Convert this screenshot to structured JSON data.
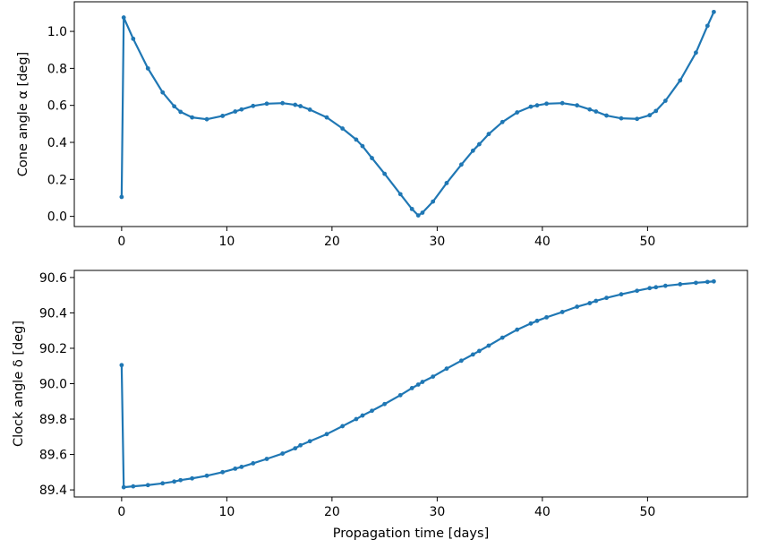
{
  "chart_data": [
    {
      "type": "line",
      "xlabel": "",
      "ylabel": "Cone angle α [deg]",
      "xlim": [
        -4.5,
        59.5
      ],
      "ylim": [
        -0.055,
        1.16
      ],
      "xticks": [
        0,
        10,
        20,
        30,
        40,
        50
      ],
      "yticks": [
        0.0,
        0.2,
        0.4,
        0.6,
        0.8,
        1.0
      ],
      "ytick_labels": [
        "0.0",
        "0.2",
        "0.4",
        "0.6",
        "0.8",
        "1.0"
      ],
      "grid": false,
      "series": [
        {
          "color": "#1f77b4",
          "marker": "dot",
          "x": [
            0.0,
            0.2,
            1.1,
            2.5,
            3.9,
            5.0,
            5.6,
            6.7,
            8.1,
            9.6,
            10.8,
            11.4,
            12.5,
            13.8,
            15.3,
            16.5,
            17.0,
            17.9,
            19.5,
            21.0,
            22.3,
            22.9,
            23.8,
            25.0,
            26.5,
            27.6,
            28.2,
            28.6,
            29.6,
            30.9,
            32.3,
            33.4,
            34.0,
            34.9,
            36.2,
            37.6,
            38.9,
            39.5,
            40.4,
            41.9,
            43.3,
            44.5,
            45.1,
            46.1,
            47.5,
            49.0,
            50.2,
            50.8,
            51.7,
            53.1,
            54.6,
            55.7,
            56.3
          ],
          "y": [
            0.105,
            1.075,
            0.96,
            0.8,
            0.67,
            0.595,
            0.565,
            0.535,
            0.525,
            0.543,
            0.567,
            0.578,
            0.597,
            0.609,
            0.612,
            0.603,
            0.596,
            0.577,
            0.535,
            0.475,
            0.415,
            0.38,
            0.315,
            0.23,
            0.12,
            0.04,
            0.005,
            0.02,
            0.08,
            0.18,
            0.28,
            0.355,
            0.39,
            0.445,
            0.51,
            0.562,
            0.593,
            0.6,
            0.609,
            0.612,
            0.6,
            0.578,
            0.567,
            0.545,
            0.53,
            0.527,
            0.547,
            0.57,
            0.625,
            0.735,
            0.885,
            1.03,
            1.105
          ]
        }
      ]
    },
    {
      "type": "line",
      "xlabel": "Propagation time [days]",
      "ylabel": "Clock angle δ [deg]",
      "xlim": [
        -4.5,
        59.5
      ],
      "ylim": [
        89.36,
        90.64
      ],
      "xticks": [
        0,
        10,
        20,
        30,
        40,
        50
      ],
      "yticks": [
        89.4,
        89.6,
        89.8,
        90.0,
        90.2,
        90.4,
        90.6
      ],
      "ytick_labels": [
        "89.4",
        "89.6",
        "89.8",
        "90.0",
        "90.2",
        "90.4",
        "90.6"
      ],
      "grid": false,
      "series": [
        {
          "color": "#1f77b4",
          "marker": "dot",
          "x": [
            0.0,
            0.2,
            1.1,
            2.5,
            3.9,
            5.0,
            5.6,
            6.7,
            8.1,
            9.6,
            10.8,
            11.4,
            12.5,
            13.8,
            15.3,
            16.5,
            17.0,
            17.9,
            19.5,
            21.0,
            22.3,
            22.9,
            23.8,
            25.0,
            26.5,
            27.6,
            28.2,
            28.6,
            29.6,
            30.9,
            32.3,
            33.4,
            34.0,
            34.9,
            36.2,
            37.6,
            38.9,
            39.5,
            40.4,
            41.9,
            43.3,
            44.5,
            45.1,
            46.1,
            47.5,
            49.0,
            50.2,
            50.8,
            51.7,
            53.1,
            54.6,
            55.7,
            56.3
          ],
          "y": [
            90.105,
            89.415,
            89.42,
            89.427,
            89.437,
            89.447,
            89.455,
            89.465,
            89.48,
            89.5,
            89.52,
            89.53,
            89.55,
            89.575,
            89.605,
            89.635,
            89.652,
            89.675,
            89.715,
            89.76,
            89.8,
            89.82,
            89.847,
            89.885,
            89.935,
            89.975,
            89.995,
            90.01,
            90.04,
            90.085,
            90.13,
            90.165,
            90.185,
            90.215,
            90.26,
            90.305,
            90.34,
            90.355,
            90.375,
            90.405,
            90.435,
            90.455,
            90.468,
            90.485,
            90.505,
            90.525,
            90.54,
            90.545,
            90.553,
            90.562,
            90.57,
            90.575,
            90.578
          ]
        }
      ]
    }
  ]
}
